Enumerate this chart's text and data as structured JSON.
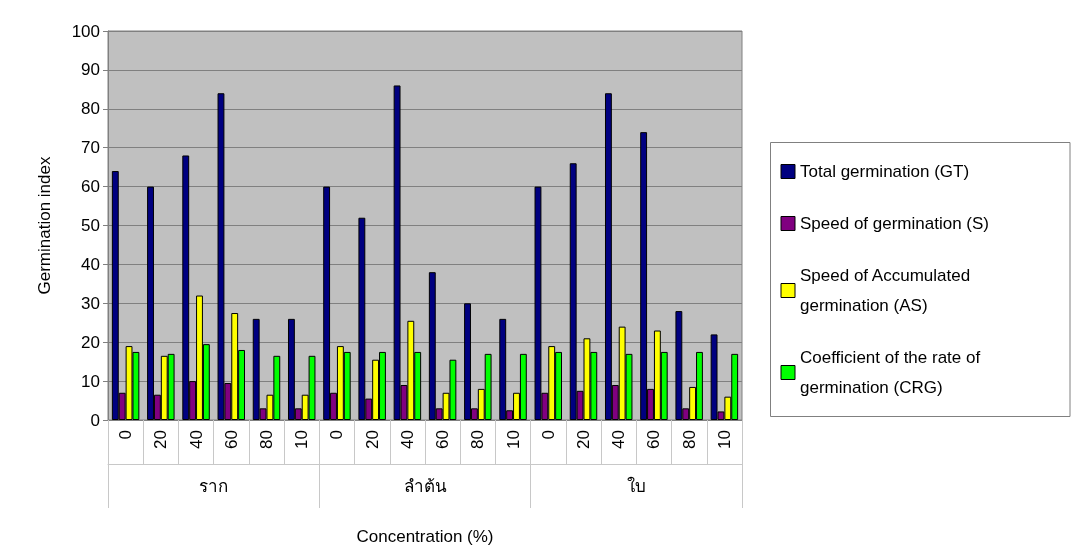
{
  "chart_data": {
    "type": "bar",
    "xlabel": "Concentration (%)",
    "ylabel": "Germination index",
    "categories": [
      "0",
      "20",
      "40",
      "60",
      "80",
      "10",
      "0",
      "20",
      "40",
      "60",
      "80",
      "10",
      "0",
      "20",
      "40",
      "60",
      "80",
      "10"
    ],
    "annotations": [
      "ราก",
      "ลำต้น",
      "ใบ"
    ],
    "series": [
      {
        "name": "Total germination (GT)",
        "color": "#000080",
        "values": [
          64,
          60,
          68,
          84,
          26,
          26,
          60,
          52,
          86,
          38,
          30,
          26,
          60,
          66,
          84,
          74,
          28,
          22
        ]
      },
      {
        "name": "Speed of germination (S)",
        "color": "#800080",
        "values": [
          7,
          6.5,
          10,
          9.5,
          3,
          3,
          7,
          5.5,
          9,
          3,
          3,
          2.5,
          7,
          7.5,
          9,
          8,
          3,
          2.2
        ]
      },
      {
        "name": "Speed of Accumulated germination (AS)",
        "color": "#ffff00",
        "values": [
          19,
          16.5,
          32,
          27.5,
          6.5,
          6.5,
          19,
          15.5,
          25.5,
          7,
          8,
          7,
          19,
          21,
          24,
          23,
          8.5,
          6
        ]
      },
      {
        "name": "Coefficient of the rate of germination (CRG)",
        "color": "#00ff00",
        "values": [
          17.5,
          17,
          19.5,
          18,
          16.5,
          16.5,
          17.5,
          17.5,
          17.5,
          15.5,
          17,
          17,
          17.5,
          17.5,
          17,
          17.5,
          17.5,
          17
        ]
      }
    ],
    "ylim": [
      0,
      100
    ],
    "yticks": [
      0,
      10,
      20,
      30,
      40,
      50,
      60,
      70,
      80,
      90,
      100
    ],
    "grid": "y",
    "legend": "right"
  }
}
